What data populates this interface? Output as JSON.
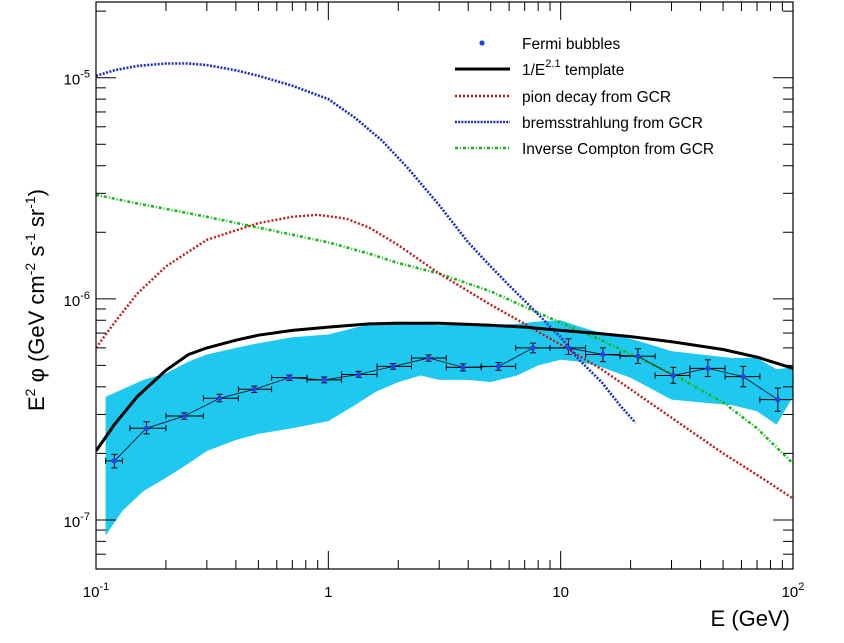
{
  "chart_data": {
    "type": "line",
    "xscale": "log",
    "yscale": "log",
    "xlim": [
      0.1,
      100
    ],
    "ylim": [
      6e-08,
      2.2e-05
    ],
    "xlabel": "E (GeV)",
    "ylabel": "E² φ (GeV cm⁻² s⁻¹ sr⁻¹)",
    "ylabel_parts": {
      "pre": "E",
      "sup1": "2",
      "mid": " φ (GeV cm",
      "sup2": "-2",
      "mid2": " s",
      "sup3": "-1",
      "mid3": " sr",
      "sup4": "-1",
      "post": ")"
    },
    "x_tick_labels": [
      {
        "value": 0.1,
        "base": "10",
        "exp": "-1"
      },
      {
        "value": 1,
        "base": "1",
        "exp": ""
      },
      {
        "value": 10,
        "base": "10",
        "exp": ""
      },
      {
        "value": 100,
        "base": "10",
        "exp": "2"
      }
    ],
    "y_tick_labels": [
      {
        "value": 1e-07,
        "base": "10",
        "exp": "-7"
      },
      {
        "value": 1e-06,
        "base": "10",
        "exp": "-6"
      },
      {
        "value": 1e-05,
        "base": "10",
        "exp": "-5"
      }
    ],
    "legend": {
      "placement": "top-right",
      "entries": [
        {
          "key": "fermi",
          "label": "Fermi bubbles",
          "sup": "",
          "post": ""
        },
        {
          "key": "template",
          "label": "1/E",
          "sup": "2.1",
          "post": " template"
        },
        {
          "key": "pion",
          "label": "pion decay from GCR",
          "sup": "",
          "post": ""
        },
        {
          "key": "brems",
          "label": "bremsstrahlung from GCR",
          "sup": "",
          "post": ""
        },
        {
          "key": "ic",
          "label": "Inverse Compton from GCR",
          "sup": "",
          "post": ""
        }
      ]
    },
    "colors": {
      "band": "#1ec8ee",
      "fermi": "#2840e6",
      "template": "#000000",
      "pion": "#c01818",
      "brems": "#1c2ec0",
      "ic": "#18b818"
    },
    "series": [
      {
        "key": "fermi",
        "name": "Fermi bubbles",
        "points": [
          {
            "x": 0.12,
            "y": 1.85e-07,
            "xlo": 0.11,
            "xhi": 0.13,
            "ylo": 1.72e-07,
            "yhi": 1.98e-07
          },
          {
            "x": 0.165,
            "y": 2.6e-07,
            "xlo": 0.14,
            "xhi": 0.2,
            "ylo": 2.45e-07,
            "yhi": 2.78e-07
          },
          {
            "x": 0.24,
            "y": 2.95e-07,
            "xlo": 0.2,
            "xhi": 0.29,
            "ylo": 2.85e-07,
            "yhi": 3.05e-07
          },
          {
            "x": 0.34,
            "y": 3.55e-07,
            "xlo": 0.29,
            "xhi": 0.41,
            "ylo": 3.42e-07,
            "yhi": 3.7e-07
          },
          {
            "x": 0.48,
            "y": 3.9e-07,
            "xlo": 0.41,
            "xhi": 0.57,
            "ylo": 3.77e-07,
            "yhi": 4.03e-07
          },
          {
            "x": 0.68,
            "y": 4.4e-07,
            "xlo": 0.57,
            "xhi": 0.81,
            "ylo": 4.28e-07,
            "yhi": 4.52e-07
          },
          {
            "x": 0.96,
            "y": 4.3e-07,
            "xlo": 0.81,
            "xhi": 1.14,
            "ylo": 4.17e-07,
            "yhi": 4.43e-07
          },
          {
            "x": 1.35,
            "y": 4.55e-07,
            "xlo": 1.14,
            "xhi": 1.62,
            "ylo": 4.42e-07,
            "yhi": 4.7e-07
          },
          {
            "x": 1.9,
            "y": 4.95e-07,
            "xlo": 1.62,
            "xhi": 2.28,
            "ylo": 4.8e-07,
            "yhi": 5.1e-07
          },
          {
            "x": 2.7,
            "y": 5.4e-07,
            "xlo": 2.28,
            "xhi": 3.22,
            "ylo": 5.22e-07,
            "yhi": 5.58e-07
          },
          {
            "x": 3.8,
            "y": 4.9e-07,
            "xlo": 3.22,
            "xhi": 4.55,
            "ylo": 4.72e-07,
            "yhi": 5.08e-07
          },
          {
            "x": 5.4,
            "y": 4.95e-07,
            "xlo": 4.55,
            "xhi": 6.4,
            "ylo": 4.75e-07,
            "yhi": 5.15e-07
          },
          {
            "x": 7.6,
            "y": 6e-07,
            "xlo": 6.4,
            "xhi": 9.0,
            "ylo": 5.7e-07,
            "yhi": 6.3e-07
          },
          {
            "x": 10.8,
            "y": 6e-07,
            "xlo": 9.0,
            "xhi": 12.8,
            "ylo": 5.6e-07,
            "yhi": 6.6e-07
          },
          {
            "x": 15.2,
            "y": 5.6e-07,
            "xlo": 12.8,
            "xhi": 18.0,
            "ylo": 5.2e-07,
            "yhi": 6e-07
          },
          {
            "x": 21.5,
            "y": 5.5e-07,
            "xlo": 18.0,
            "xhi": 25.5,
            "ylo": 5.1e-07,
            "yhi": 5.95e-07
          },
          {
            "x": 30.5,
            "y": 4.5e-07,
            "xlo": 25.5,
            "xhi": 36.0,
            "ylo": 4.15e-07,
            "yhi": 4.9e-07
          },
          {
            "x": 43.0,
            "y": 4.85e-07,
            "xlo": 36.0,
            "xhi": 51.0,
            "ylo": 4.45e-07,
            "yhi": 5.3e-07
          },
          {
            "x": 61.0,
            "y": 4.45e-07,
            "xlo": 51.0,
            "xhi": 72.0,
            "ylo": 4e-07,
            "yhi": 4.95e-07
          },
          {
            "x": 86.0,
            "y": 3.5e-07,
            "xlo": 72.0,
            "xhi": 100.0,
            "ylo": 3.1e-07,
            "yhi": 3.95e-07
          }
        ]
      },
      {
        "key": "template",
        "name": "1/E^2.1 template",
        "x": [
          0.1,
          0.12,
          0.15,
          0.2,
          0.25,
          0.3,
          0.4,
          0.5,
          0.7,
          1,
          1.5,
          2,
          3,
          5,
          7,
          10,
          15,
          20,
          30,
          50,
          70,
          100
        ],
        "y": [
          2.05e-07,
          2.7e-07,
          3.6e-07,
          4.75e-07,
          5.6e-07,
          6e-07,
          6.5e-07,
          6.85e-07,
          7.2e-07,
          7.45e-07,
          7.7e-07,
          7.75e-07,
          7.75e-07,
          7.6e-07,
          7.45e-07,
          7.2e-07,
          6.95e-07,
          6.75e-07,
          6.4e-07,
          5.9e-07,
          5.45e-07,
          4.85e-07
        ]
      },
      {
        "key": "pion",
        "name": "pion decay from GCR",
        "x": [
          0.1,
          0.12,
          0.15,
          0.2,
          0.3,
          0.5,
          0.7,
          0.9,
          1.2,
          1.5,
          2,
          3,
          5,
          7,
          10,
          15,
          20,
          30,
          50,
          70,
          100
        ],
        "y": [
          6e-07,
          7.8e-07,
          1.05e-06,
          1.4e-06,
          1.85e-06,
          2.2e-06,
          2.35e-06,
          2.4e-06,
          2.3e-06,
          2.1e-06,
          1.75e-06,
          1.3e-06,
          9.4e-07,
          7.7e-07,
          6.2e-07,
          4.8e-07,
          3.9e-07,
          2.9e-07,
          2e-07,
          1.6e-07,
          1.25e-07
        ]
      },
      {
        "key": "brems",
        "name": "bremsstrahlung from GCR",
        "x": [
          0.1,
          0.12,
          0.15,
          0.2,
          0.25,
          0.3,
          0.4,
          0.5,
          0.7,
          1,
          1.3,
          1.7,
          2.2,
          3,
          4,
          5,
          6,
          7,
          8,
          9,
          10,
          12,
          15,
          18,
          21
        ],
        "y": [
          1.02e-05,
          1.08e-05,
          1.13e-05,
          1.16e-05,
          1.16e-05,
          1.14e-05,
          1.08e-05,
          1.02e-05,
          9.2e-06,
          8e-06,
          6.6e-06,
          5.2e-06,
          3.9e-06,
          2.65e-06,
          1.8e-06,
          1.4e-06,
          1.15e-06,
          9.8e-07,
          8.5e-07,
          7.5e-07,
          6.7e-07,
          5.3e-07,
          4.2e-07,
          3.3e-07,
          2.75e-07
        ]
      },
      {
        "key": "ic",
        "name": "Inverse Compton from GCR",
        "x": [
          0.1,
          0.15,
          0.2,
          0.3,
          0.5,
          0.7,
          1,
          1.5,
          2,
          3,
          5,
          7,
          10,
          15,
          20,
          30,
          50,
          70,
          100
        ],
        "y": [
          2.95e-06,
          2.7e-06,
          2.55e-06,
          2.35e-06,
          2.1e-06,
          1.95e-06,
          1.8e-06,
          1.6e-06,
          1.45e-06,
          1.3e-06,
          1.08e-06,
          9.2e-07,
          7.8e-07,
          6.5e-07,
          5.6e-07,
          4.6e-07,
          3.4e-07,
          2.6e-07,
          1.8e-07
        ]
      }
    ],
    "uncertainty_band": {
      "name": "Fermi bubbles uncertainty",
      "x": [
        0.11,
        0.13,
        0.16,
        0.2,
        0.25,
        0.3,
        0.4,
        0.5,
        0.7,
        1.0,
        1.3,
        1.6,
        2.0,
        2.5,
        3.0,
        4.0,
        5.0,
        6.5,
        8.0,
        10.0,
        12.0,
        15.0,
        20.0,
        30.0,
        40.0,
        55.0,
        70.0,
        85.0,
        100.0
      ],
      "upper": [
        3.6e-07,
        3.9e-07,
        4.3e-07,
        4.6e-07,
        5.2e-07,
        5.6e-07,
        6e-07,
        6.3e-07,
        6.7e-07,
        6.9e-07,
        7.4e-07,
        7.8e-07,
        7.9e-07,
        7.7e-07,
        7.6e-07,
        7.7e-07,
        7.6e-07,
        7.7e-07,
        7.9e-07,
        8e-07,
        7.5e-07,
        7e-07,
        6.6e-07,
        5.8e-07,
        5.6e-07,
        5.4e-07,
        5.4e-07,
        4.8e-07,
        4.9e-07
      ],
      "lower": [
        8.5e-08,
        1.1e-07,
        1.35e-07,
        1.55e-07,
        1.8e-07,
        2.05e-07,
        2.3e-07,
        2.45e-07,
        2.6e-07,
        2.8e-07,
        3.3e-07,
        3.8e-07,
        4.2e-07,
        4.5e-07,
        4.3e-07,
        4.3e-07,
        4.2e-07,
        4.5e-07,
        5e-07,
        5.3e-07,
        5.2e-07,
        4.9e-07,
        4.4e-07,
        3.5e-07,
        3.4e-07,
        3.3e-07,
        3.1e-07,
        2.7e-07,
        3.6e-07
      ]
    }
  }
}
